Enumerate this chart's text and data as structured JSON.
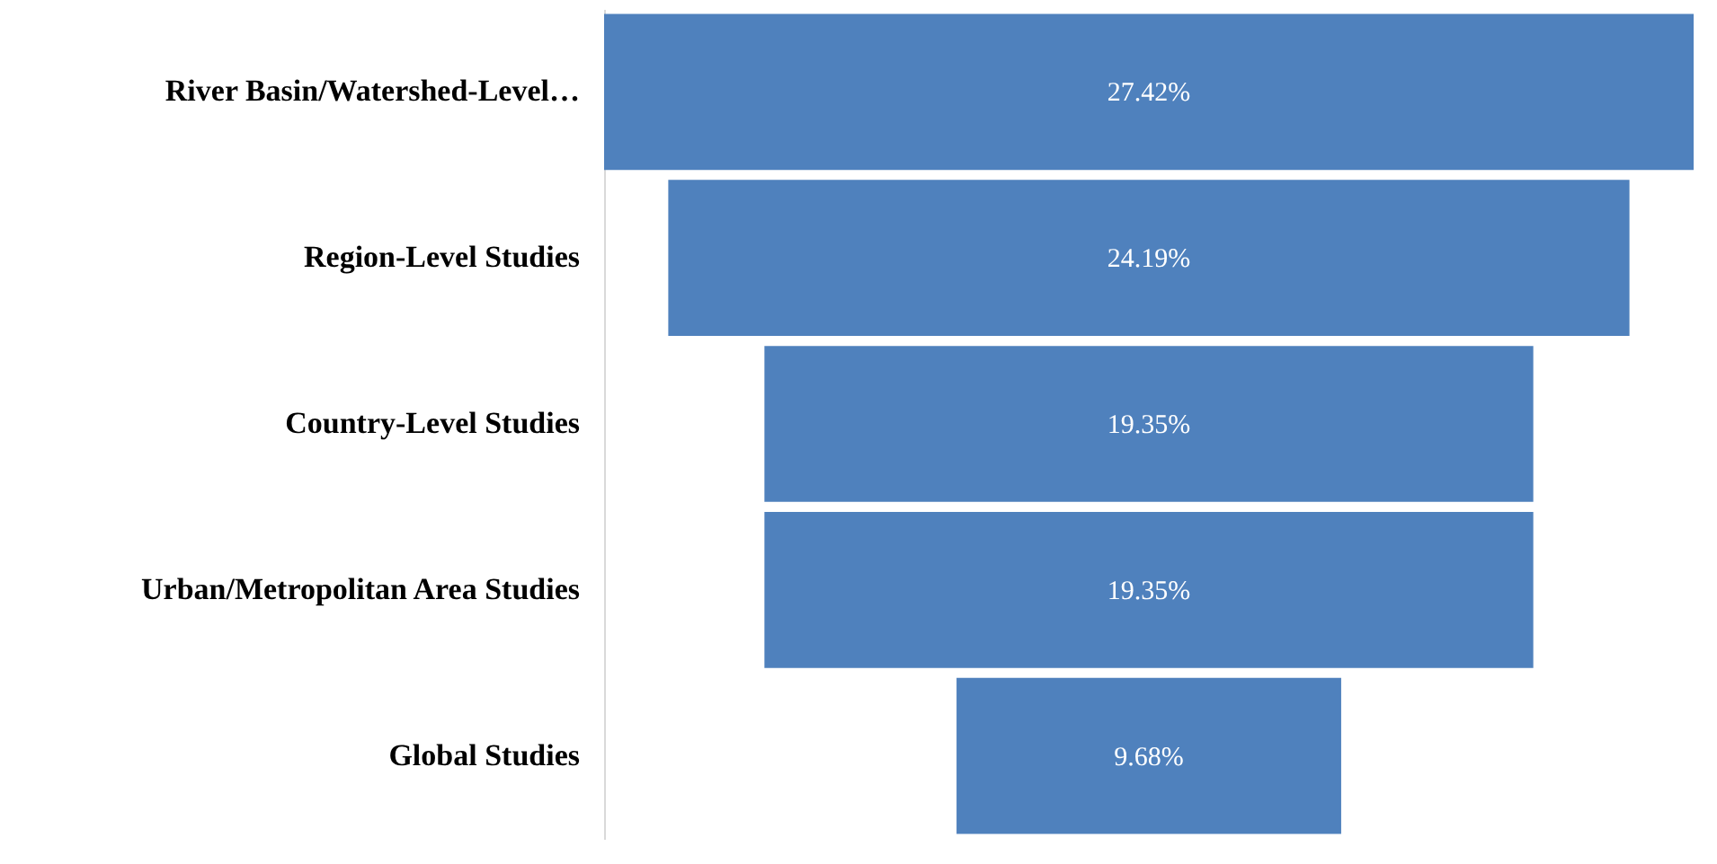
{
  "chart_data": {
    "type": "other",
    "categories": [
      "River Basin/Watershed-Level…",
      "Region-Level Studies",
      "Country-Level Studies",
      "Urban/Metropolitan Area Studies",
      "Global Studies"
    ],
    "values": [
      27.42,
      24.19,
      19.35,
      19.35,
      9.68
    ],
    "value_labels": [
      "27.42%",
      "24.19%",
      "19.35%",
      "19.35%",
      "9.68%"
    ],
    "color": "#4f81bd"
  }
}
